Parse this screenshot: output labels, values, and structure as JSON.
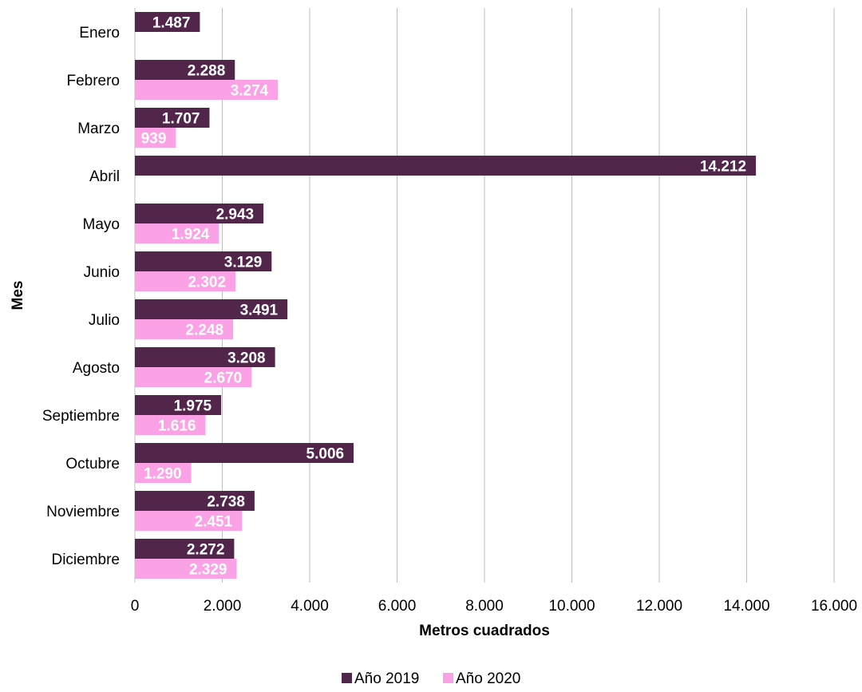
{
  "chart_data": {
    "type": "bar",
    "orientation": "horizontal",
    "categories": [
      "Enero",
      "Febrero",
      "Marzo",
      "Abril",
      "Mayo",
      "Junio",
      "Julio",
      "Agosto",
      "Septiembre",
      "Octubre",
      "Noviembre",
      "Diciembre"
    ],
    "series": [
      {
        "name": "Año 2019",
        "color": "#52264a",
        "values": [
          1487,
          2288,
          1707,
          14212,
          2943,
          3129,
          3491,
          3208,
          1975,
          5006,
          2738,
          2272
        ],
        "labels": [
          "1.487",
          "2.288",
          "1.707",
          "14.212",
          "2.943",
          "3.129",
          "3.491",
          "3.208",
          "1.975",
          "5.006",
          "2.738",
          "2.272"
        ]
      },
      {
        "name": "Año 2020",
        "color": "#fba2e6",
        "values": [
          null,
          3274,
          939,
          null,
          1924,
          2302,
          2248,
          2670,
          1616,
          1290,
          2451,
          2329
        ],
        "labels": [
          "",
          "3.274",
          "939",
          "",
          "1.924",
          "2.302",
          "2.248",
          "2.670",
          "1.616",
          "1.290",
          "2.451",
          "2.329"
        ]
      }
    ],
    "xlabel": "Metros cuadrados",
    "ylabel": "Mes",
    "xlim": [
      0,
      16000
    ],
    "xticks": [
      0,
      2000,
      4000,
      6000,
      8000,
      10000,
      12000,
      14000,
      16000
    ],
    "xtick_labels": [
      "0",
      "2.000",
      "4.000",
      "6.000",
      "8.000",
      "10.000",
      "12.000",
      "14.000",
      "16.000"
    ],
    "grid": "vertical",
    "legend": "bottom"
  }
}
